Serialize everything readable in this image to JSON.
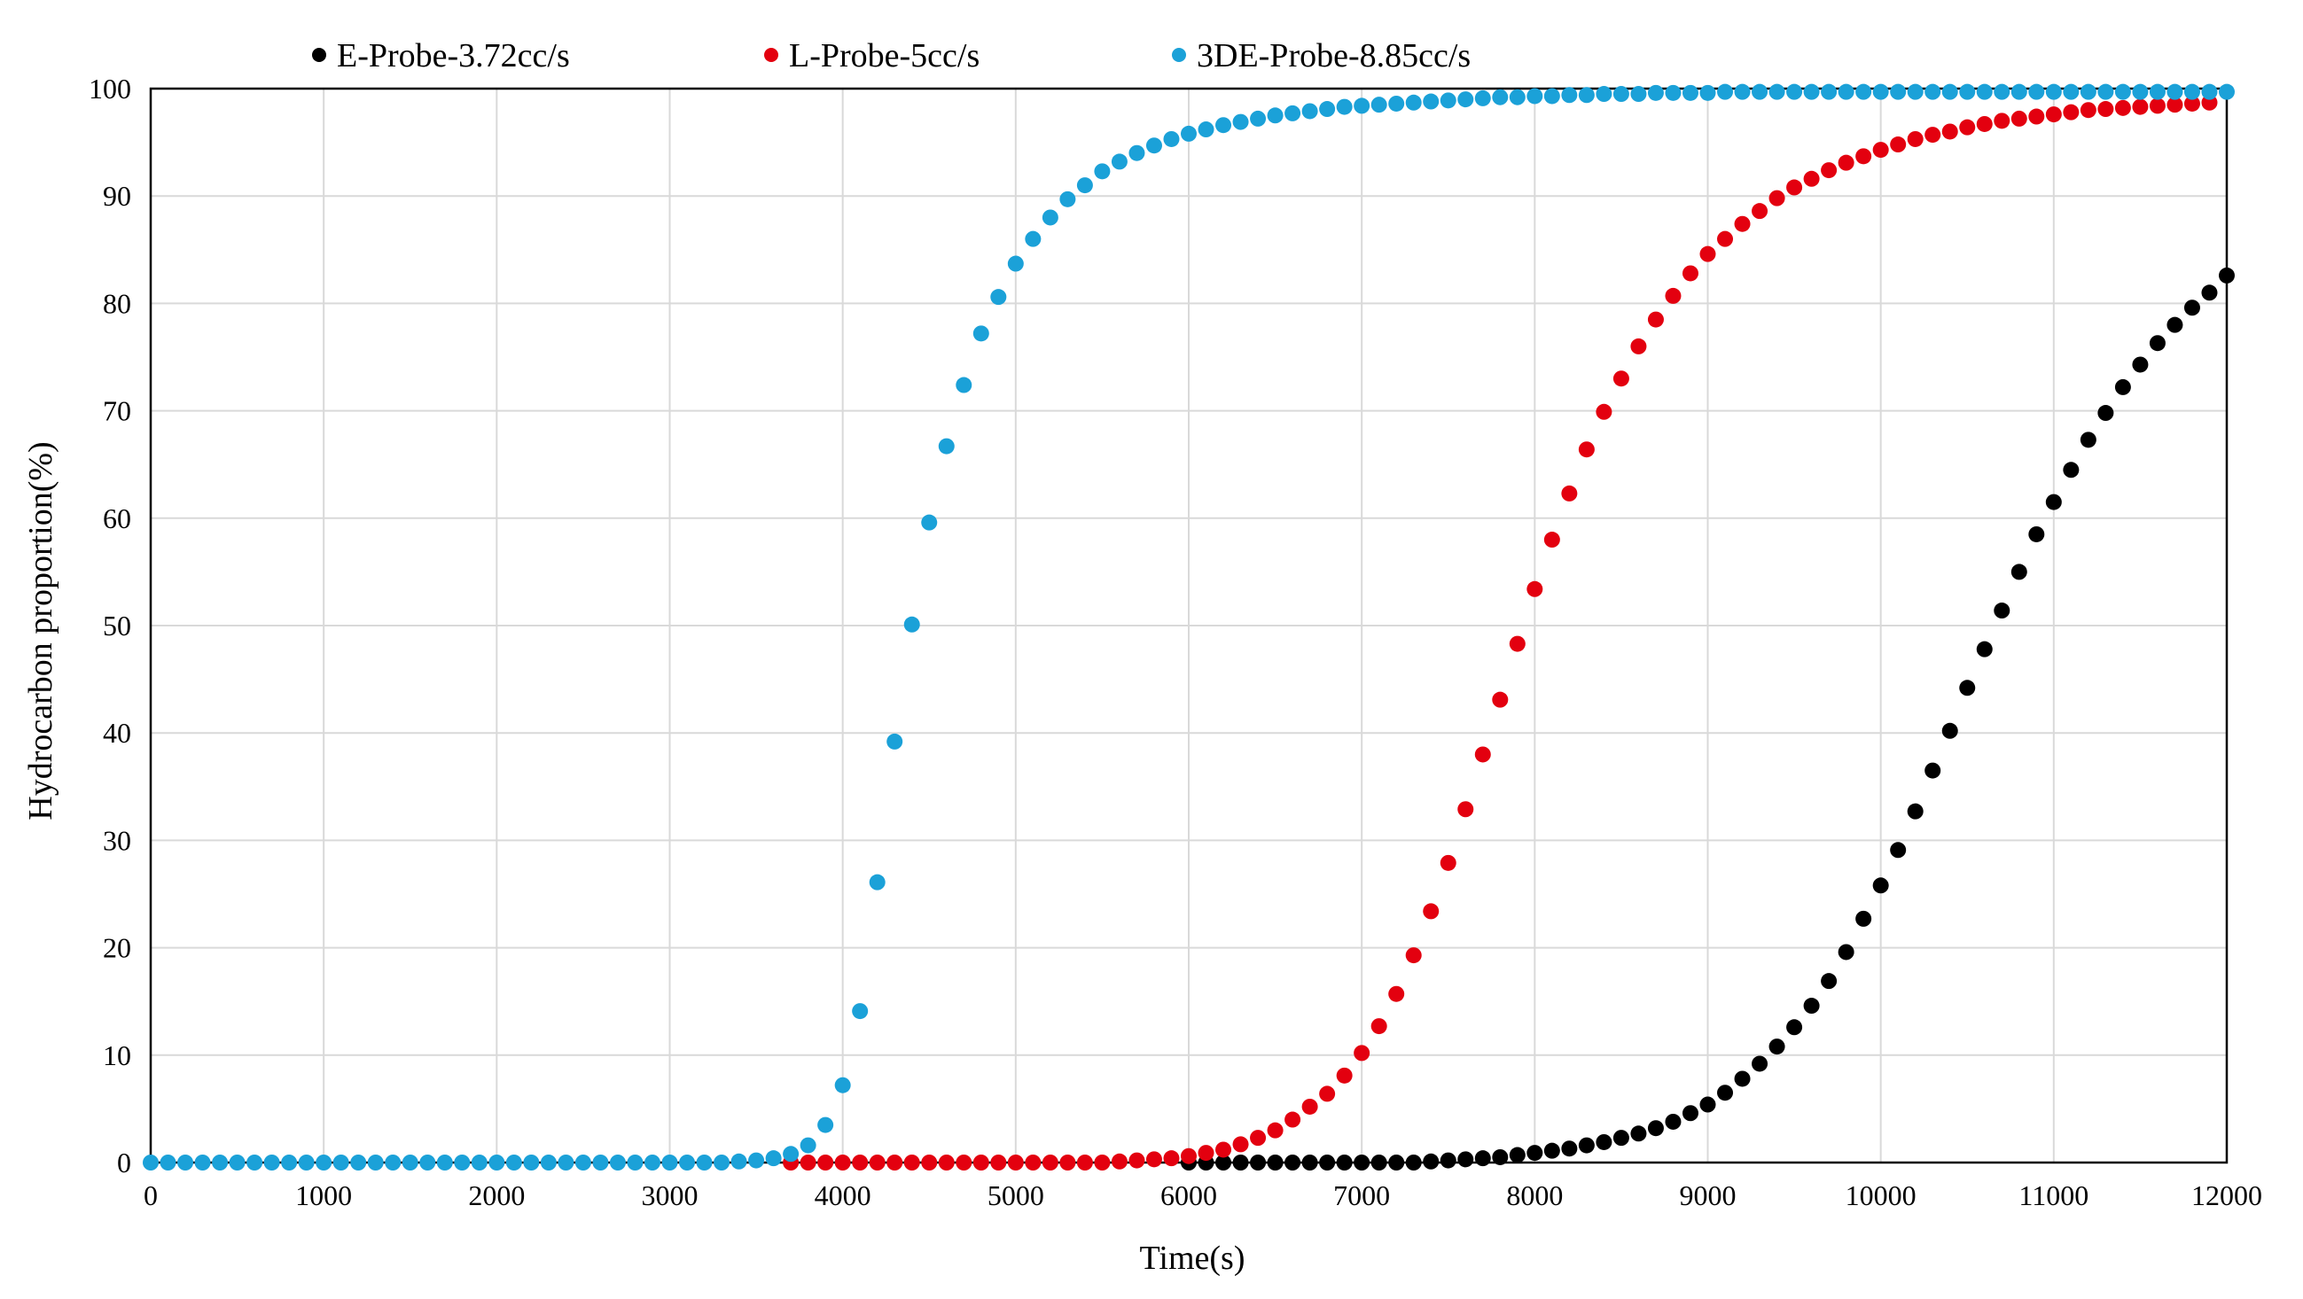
{
  "chart_data": {
    "type": "scatter",
    "title": "",
    "xlabel": "Time(s)",
    "ylabel": "Hydrocarbon proportion(%)",
    "xlim": [
      0,
      12000
    ],
    "ylim": [
      0,
      100
    ],
    "x_ticks": [
      0,
      1000,
      2000,
      3000,
      4000,
      5000,
      6000,
      7000,
      8000,
      9000,
      10000,
      11000,
      12000
    ],
    "y_ticks": [
      0,
      10,
      20,
      30,
      40,
      50,
      60,
      70,
      80,
      90,
      100
    ],
    "grid": true,
    "legend_position": "top",
    "series": [
      {
        "name": "E-Probe-3.72cc/s",
        "color": "#000000",
        "x_start": 6000,
        "x_step": 100,
        "values": [
          0,
          0,
          0,
          0,
          0,
          0,
          0,
          0,
          0,
          0,
          0,
          0,
          0,
          0,
          0.1,
          0.2,
          0.3,
          0.4,
          0.5,
          0.7,
          0.9,
          1.1,
          1.3,
          1.6,
          1.9,
          2.3,
          2.7,
          3.2,
          3.8,
          4.6,
          5.4,
          6.5,
          7.8,
          9.2,
          10.8,
          12.6,
          14.6,
          16.9,
          19.6,
          22.7,
          25.8,
          29.1,
          32.7,
          36.5,
          40.2,
          44.2,
          47.8,
          51.4,
          55.0,
          58.5,
          61.5,
          64.5,
          67.3,
          69.8,
          72.2,
          74.3,
          76.3,
          78.0,
          79.6,
          81.0,
          82.6
        ]
      },
      {
        "name": "L-Probe-5cc/s",
        "color": "#e3000f",
        "x_start": 3700,
        "x_step": 100,
        "values": [
          0,
          0,
          0,
          0,
          0,
          0,
          0,
          0,
          0,
          0,
          0,
          0,
          0,
          0,
          0,
          0,
          0,
          0,
          0,
          0.1,
          0.2,
          0.3,
          0.4,
          0.6,
          0.9,
          1.2,
          1.7,
          2.3,
          3.0,
          4.0,
          5.2,
          6.4,
          8.1,
          10.2,
          12.7,
          15.7,
          19.3,
          23.4,
          27.9,
          32.9,
          38.0,
          43.1,
          48.3,
          53.4,
          58.0,
          62.3,
          66.4,
          69.9,
          73.0,
          76.0,
          78.5,
          80.7,
          82.8,
          84.6,
          86.0,
          87.4,
          88.6,
          89.8,
          90.8,
          91.6,
          92.4,
          93.1,
          93.7,
          94.3,
          94.8,
          95.3,
          95.7,
          96.0,
          96.4,
          96.7,
          97.0,
          97.2,
          97.4,
          97.6,
          97.8,
          98.0,
          98.1,
          98.2,
          98.3,
          98.4,
          98.5,
          98.6,
          98.7
        ]
      },
      {
        "name": "3DE-Probe-8.85cc/s",
        "color": "#1ba1d8",
        "x_start": 0,
        "x_step": 100,
        "values": [
          0,
          0,
          0,
          0,
          0,
          0,
          0,
          0,
          0,
          0,
          0,
          0,
          0,
          0,
          0,
          0,
          0,
          0,
          0,
          0,
          0,
          0,
          0,
          0,
          0,
          0,
          0,
          0,
          0,
          0,
          0,
          0,
          0,
          0,
          0.1,
          0.2,
          0.4,
          0.8,
          1.6,
          3.5,
          7.2,
          14.1,
          26.1,
          39.2,
          50.1,
          59.6,
          66.7,
          72.4,
          77.2,
          80.6,
          83.7,
          86.0,
          88.0,
          89.7,
          91.0,
          92.3,
          93.2,
          94.0,
          94.7,
          95.3,
          95.8,
          96.2,
          96.6,
          96.9,
          97.2,
          97.5,
          97.7,
          97.9,
          98.1,
          98.3,
          98.4,
          98.5,
          98.6,
          98.7,
          98.8,
          98.9,
          99.0,
          99.1,
          99.2,
          99.2,
          99.3,
          99.3,
          99.4,
          99.4,
          99.5,
          99.5,
          99.5,
          99.6,
          99.6,
          99.6,
          99.6,
          99.7,
          99.7,
          99.7,
          99.7,
          99.7,
          99.7,
          99.7,
          99.7,
          99.7,
          99.7,
          99.7,
          99.7,
          99.7,
          99.7,
          99.7,
          99.7,
          99.7,
          99.7,
          99.7,
          99.7,
          99.7,
          99.7,
          99.7,
          99.7,
          99.7,
          99.7,
          99.7,
          99.7,
          99.7,
          99.7
        ]
      }
    ]
  }
}
